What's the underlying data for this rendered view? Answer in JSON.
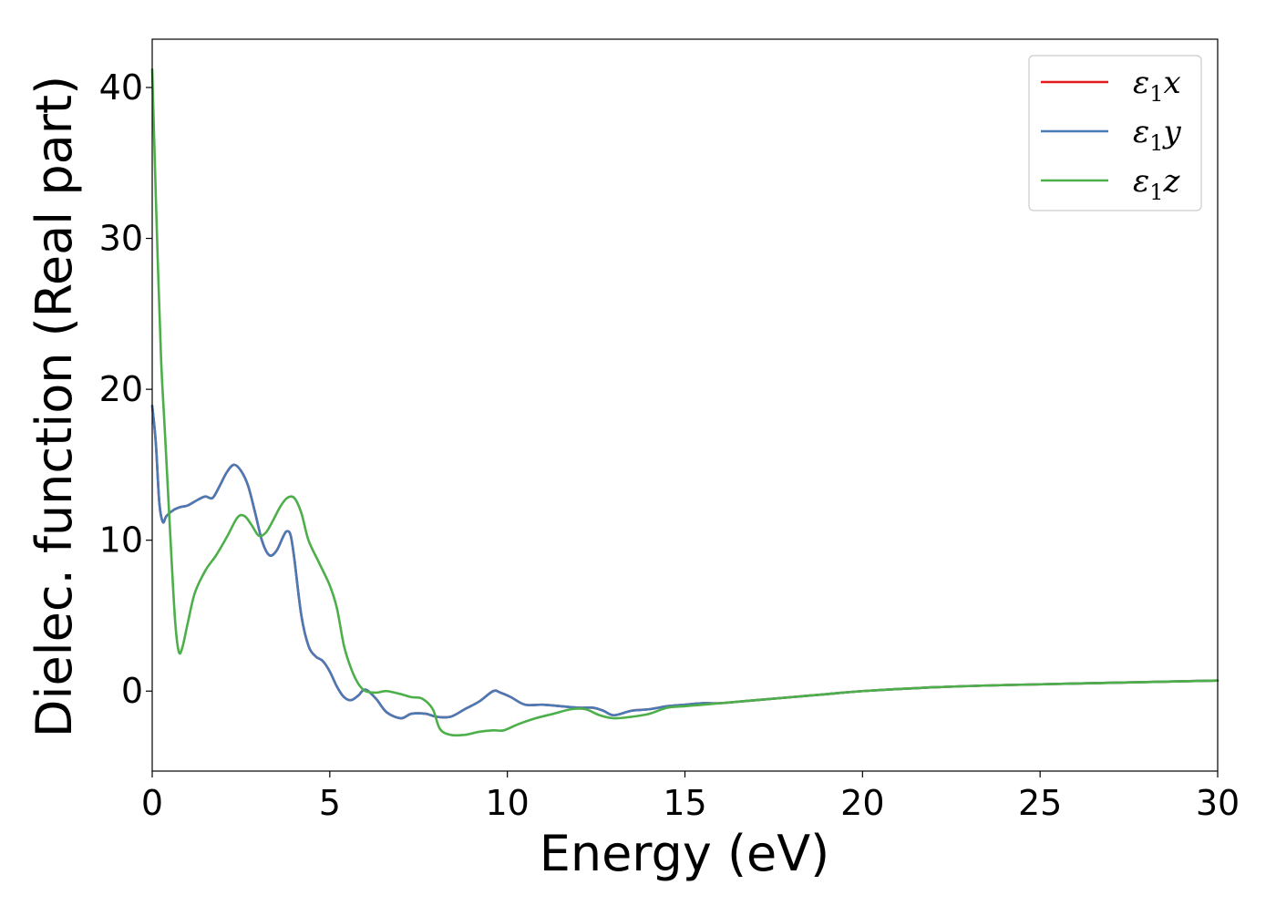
{
  "chart_data": {
    "type": "line",
    "title": "",
    "xlabel": "Energy (eV)",
    "ylabel": "Dielec. function (Real part)",
    "xlim": [
      0,
      30
    ],
    "ylim": [
      -5.3,
      43.2
    ],
    "xticks": [
      0,
      5,
      10,
      15,
      20,
      25,
      30
    ],
    "xtick_labels": [
      "0",
      "5",
      "10",
      "15",
      "20",
      "25",
      "30"
    ],
    "yticks": [
      0,
      10,
      20,
      30,
      40
    ],
    "ytick_labels": [
      "0",
      "10",
      "20",
      "30",
      "40"
    ],
    "grid": false,
    "legend_position": "top-right",
    "series": [
      {
        "name": "ε₁x",
        "legend_main": "ε",
        "legend_sub": "1",
        "legend_tail": "x",
        "color": "#e41a1c",
        "x": [
          0,
          0.1,
          0.2,
          0.3,
          0.4,
          0.6,
          0.8,
          1.0,
          1.3,
          1.5,
          1.7,
          1.9,
          2.1,
          2.3,
          2.5,
          2.7,
          2.9,
          3.1,
          3.3,
          3.5,
          3.7,
          3.8,
          3.9,
          4.0,
          4.2,
          4.4,
          4.6,
          4.8,
          5.0,
          5.2,
          5.4,
          5.6,
          5.8,
          6.0,
          6.3,
          6.6,
          7.0,
          7.3,
          7.7,
          8.0,
          8.4,
          8.8,
          9.2,
          9.6,
          9.8,
          10.1,
          10.5,
          11.0,
          11.5,
          12.0,
          12.4,
          12.7,
          13.0,
          13.5,
          14.0,
          14.5,
          15.0,
          15.5,
          16.0,
          17.0,
          18.0,
          19.0,
          20.0,
          22.0,
          24.0,
          26.0,
          28.0,
          30.0
        ],
        "y": [
          18.9,
          16.5,
          12.5,
          11.2,
          11.6,
          12.0,
          12.2,
          12.3,
          12.7,
          12.9,
          12.8,
          13.6,
          14.5,
          15.0,
          14.6,
          13.6,
          11.8,
          9.9,
          9.0,
          9.3,
          10.3,
          10.6,
          10.3,
          8.8,
          5.0,
          3.0,
          2.3,
          2.0,
          1.3,
          0.3,
          -0.4,
          -0.6,
          -0.3,
          0.1,
          -0.5,
          -1.4,
          -1.8,
          -1.5,
          -1.5,
          -1.7,
          -1.7,
          -1.2,
          -0.7,
          0.0,
          -0.1,
          -0.4,
          -0.9,
          -0.9,
          -1.0,
          -1.1,
          -1.1,
          -1.3,
          -1.6,
          -1.3,
          -1.2,
          -1.0,
          -0.9,
          -0.8,
          -0.8,
          -0.6,
          -0.4,
          -0.2,
          0.0,
          0.25,
          0.4,
          0.5,
          0.6,
          0.7
        ]
      },
      {
        "name": "ε₁y",
        "legend_main": "ε",
        "legend_sub": "1",
        "legend_tail": "y",
        "color": "#4a7ab5",
        "x": [
          0,
          0.1,
          0.2,
          0.3,
          0.4,
          0.6,
          0.8,
          1.0,
          1.3,
          1.5,
          1.7,
          1.9,
          2.1,
          2.3,
          2.5,
          2.7,
          2.9,
          3.1,
          3.3,
          3.5,
          3.7,
          3.8,
          3.9,
          4.0,
          4.2,
          4.4,
          4.6,
          4.8,
          5.0,
          5.2,
          5.4,
          5.6,
          5.8,
          6.0,
          6.3,
          6.6,
          7.0,
          7.3,
          7.7,
          8.0,
          8.4,
          8.8,
          9.2,
          9.6,
          9.8,
          10.1,
          10.5,
          11.0,
          11.5,
          12.0,
          12.4,
          12.7,
          13.0,
          13.5,
          14.0,
          14.5,
          15.0,
          15.5,
          16.0,
          17.0,
          18.0,
          19.0,
          20.0,
          22.0,
          24.0,
          26.0,
          28.0,
          30.0
        ],
        "y": [
          18.9,
          16.5,
          12.5,
          11.2,
          11.6,
          12.0,
          12.2,
          12.3,
          12.7,
          12.9,
          12.8,
          13.6,
          14.5,
          15.0,
          14.6,
          13.6,
          11.8,
          9.9,
          9.0,
          9.3,
          10.3,
          10.6,
          10.3,
          8.8,
          5.0,
          3.0,
          2.3,
          2.0,
          1.3,
          0.3,
          -0.4,
          -0.6,
          -0.3,
          0.1,
          -0.5,
          -1.4,
          -1.8,
          -1.5,
          -1.5,
          -1.7,
          -1.7,
          -1.2,
          -0.7,
          0.0,
          -0.1,
          -0.4,
          -0.9,
          -0.9,
          -1.0,
          -1.1,
          -1.1,
          -1.3,
          -1.6,
          -1.3,
          -1.2,
          -1.0,
          -0.9,
          -0.8,
          -0.8,
          -0.6,
          -0.4,
          -0.2,
          0.0,
          0.25,
          0.4,
          0.5,
          0.6,
          0.7
        ]
      },
      {
        "name": "ε₁z",
        "legend_main": "ε",
        "legend_sub": "1",
        "legend_tail": "z",
        "color": "#4daf4a",
        "x": [
          0,
          0.05,
          0.15,
          0.25,
          0.35,
          0.45,
          0.55,
          0.65,
          0.75,
          0.85,
          1.0,
          1.2,
          1.5,
          1.8,
          2.1,
          2.4,
          2.6,
          2.8,
          3.0,
          3.2,
          3.4,
          3.6,
          3.8,
          4.0,
          4.2,
          4.4,
          4.7,
          5.0,
          5.2,
          5.4,
          5.6,
          5.8,
          6.0,
          6.3,
          6.6,
          7.0,
          7.3,
          7.6,
          7.9,
          8.1,
          8.4,
          8.8,
          9.2,
          9.6,
          9.9,
          10.3,
          10.8,
          11.3,
          11.8,
          12.2,
          12.6,
          13.0,
          13.5,
          14.0,
          14.5,
          15.0,
          15.5,
          16.0,
          17.0,
          18.0,
          19.0,
          20.0,
          22.0,
          24.0,
          26.0,
          28.0,
          30.0
        ],
        "y": [
          41.2,
          37.0,
          29.0,
          22.0,
          17.5,
          13.0,
          8.5,
          4.5,
          2.6,
          2.9,
          4.5,
          6.5,
          8.0,
          9.0,
          10.2,
          11.5,
          11.6,
          11.0,
          10.3,
          10.5,
          11.3,
          12.2,
          12.8,
          12.8,
          11.8,
          10.0,
          8.5,
          7.0,
          5.5,
          3.0,
          1.5,
          0.5,
          0.0,
          -0.1,
          0.0,
          -0.2,
          -0.4,
          -0.5,
          -1.2,
          -2.5,
          -2.9,
          -2.9,
          -2.7,
          -2.6,
          -2.6,
          -2.2,
          -1.8,
          -1.5,
          -1.2,
          -1.2,
          -1.6,
          -1.8,
          -1.7,
          -1.5,
          -1.1,
          -1.0,
          -0.9,
          -0.8,
          -0.6,
          -0.4,
          -0.2,
          0.0,
          0.25,
          0.4,
          0.5,
          0.6,
          0.7
        ]
      }
    ]
  }
}
